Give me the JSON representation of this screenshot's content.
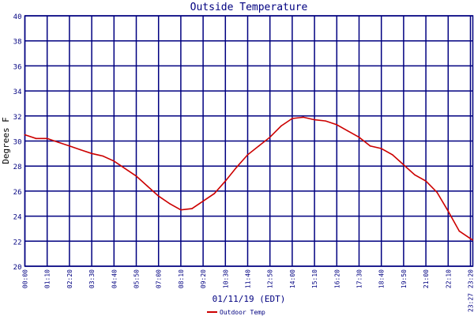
{
  "chart_data": {
    "type": "line",
    "title": "Outside Temperature",
    "xlabel": "01/11/19 (EDT)",
    "ylabel": "Degrees F",
    "ylim": [
      20,
      40
    ],
    "xlim_minutes": [
      0,
      1407
    ],
    "grid": true,
    "legend_placement": "bottom-center",
    "y_ticks": [
      "20",
      "22",
      "24",
      "26",
      "28",
      "30",
      "32",
      "34",
      "36",
      "38",
      "40"
    ],
    "x_ticks": [
      {
        "label": "00:00",
        "minutes": 0
      },
      {
        "label": "01:10",
        "minutes": 70
      },
      {
        "label": "02:20",
        "minutes": 140
      },
      {
        "label": "03:30",
        "minutes": 210
      },
      {
        "label": "04:40",
        "minutes": 280
      },
      {
        "label": "05:50",
        "minutes": 350
      },
      {
        "label": "07:00",
        "minutes": 420
      },
      {
        "label": "08:10",
        "minutes": 490
      },
      {
        "label": "09:20",
        "minutes": 560
      },
      {
        "label": "10:30",
        "minutes": 630
      },
      {
        "label": "11:40",
        "minutes": 700
      },
      {
        "label": "12:50",
        "minutes": 770
      },
      {
        "label": "14:00",
        "minutes": 840
      },
      {
        "label": "15:10",
        "minutes": 910
      },
      {
        "label": "16:20",
        "minutes": 980
      },
      {
        "label": "17:30",
        "minutes": 1050
      },
      {
        "label": "18:40",
        "minutes": 1120
      },
      {
        "label": "19:50",
        "minutes": 1190
      },
      {
        "label": "21:00",
        "minutes": 1260
      },
      {
        "label": "22:10",
        "minutes": 1330
      },
      {
        "label": "23:20",
        "minutes": 1400
      },
      {
        "label": "23:27",
        "minutes": 1407
      }
    ],
    "series": [
      {
        "name": "Outdoor Temp",
        "color": "#cc0000",
        "x_minutes": [
          0,
          35,
          70,
          105,
          140,
          175,
          210,
          245,
          280,
          315,
          350,
          385,
          420,
          455,
          490,
          525,
          560,
          595,
          630,
          665,
          700,
          735,
          770,
          805,
          840,
          875,
          910,
          945,
          980,
          1015,
          1050,
          1085,
          1120,
          1155,
          1190,
          1225,
          1260,
          1295,
          1330,
          1365,
          1400,
          1407
        ],
        "values": [
          30.5,
          30.2,
          30.2,
          29.9,
          29.6,
          29.3,
          29.0,
          28.8,
          28.4,
          27.8,
          27.2,
          26.4,
          25.6,
          25.0,
          24.5,
          24.6,
          25.2,
          25.8,
          26.8,
          27.9,
          28.9,
          29.6,
          30.3,
          31.2,
          31.8,
          31.9,
          31.7,
          31.6,
          31.3,
          30.8,
          30.3,
          29.6,
          29.4,
          28.9,
          28.1,
          27.3,
          26.8,
          25.9,
          24.4,
          22.8,
          22.2,
          22.1
        ]
      }
    ]
  },
  "colors": {
    "axis": "#000080",
    "line": "#cc0000"
  }
}
